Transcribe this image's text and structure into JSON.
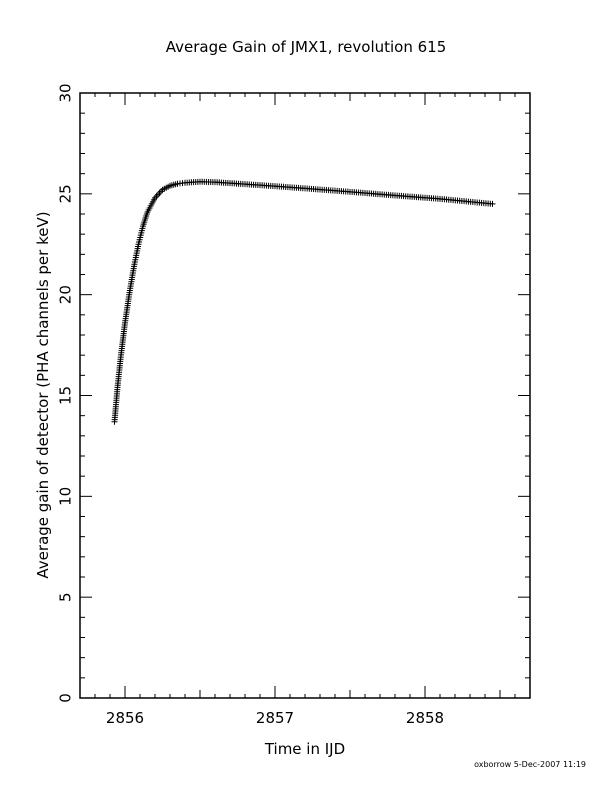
{
  "chart_data": {
    "type": "scatter",
    "title": "Average Gain of JMX1, revolution 615",
    "xlabel": "Time in IJD",
    "ylabel": "Average gain of detector (PHA channels per keV)",
    "xlim": [
      2855.7,
      2858.7
    ],
    "ylim": [
      0,
      30
    ],
    "xticks": [
      2856,
      2857,
      2858
    ],
    "yticks": [
      0,
      5,
      10,
      15,
      20,
      25,
      30
    ],
    "marker": "+",
    "grid": false,
    "series": [
      {
        "x": [
          2855.93,
          2855.95,
          2855.97,
          2856.0,
          2856.03,
          2856.06,
          2856.09,
          2856.12,
          2856.15,
          2856.2,
          2856.25,
          2856.3,
          2856.35,
          2856.4,
          2856.5,
          2856.6,
          2856.8,
          2857.0,
          2857.2,
          2857.5,
          2857.8,
          2858.1,
          2858.45
        ],
        "y": [
          13.7,
          15.4,
          16.8,
          18.6,
          20.1,
          21.4,
          22.5,
          23.4,
          24.1,
          24.8,
          25.2,
          25.4,
          25.5,
          25.55,
          25.6,
          25.58,
          25.48,
          25.38,
          25.27,
          25.1,
          24.92,
          24.75,
          24.5
        ]
      }
    ]
  },
  "footer": "oxborrow  5-Dec-2007 11:19"
}
